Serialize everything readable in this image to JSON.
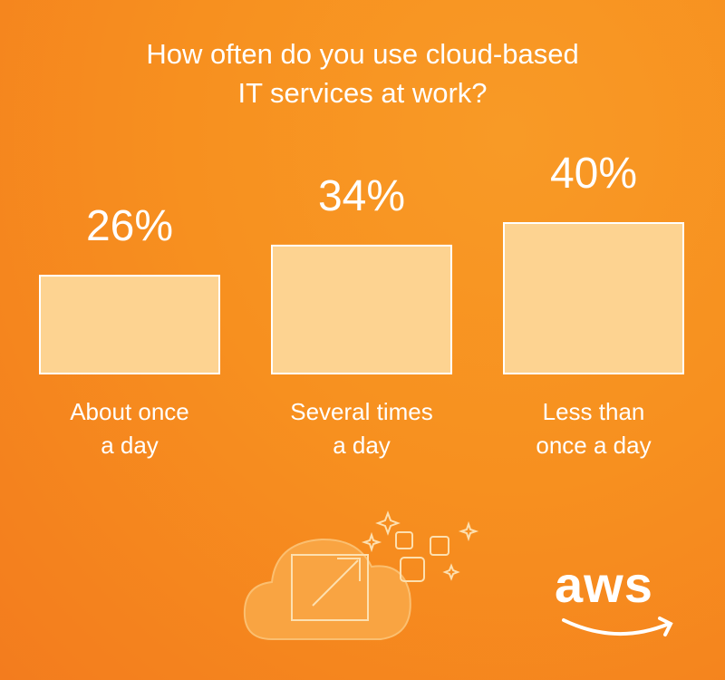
{
  "chart_data": {
    "type": "bar",
    "title": "How often do you use cloud-based\nIT services at work?",
    "categories": [
      "About once\na day",
      "Several times\na day",
      "Less than\nonce a day"
    ],
    "values": [
      26,
      34,
      40
    ],
    "value_labels": [
      "26%",
      "34%",
      "40%"
    ],
    "color": "#fdd391"
  },
  "logo": "aws"
}
